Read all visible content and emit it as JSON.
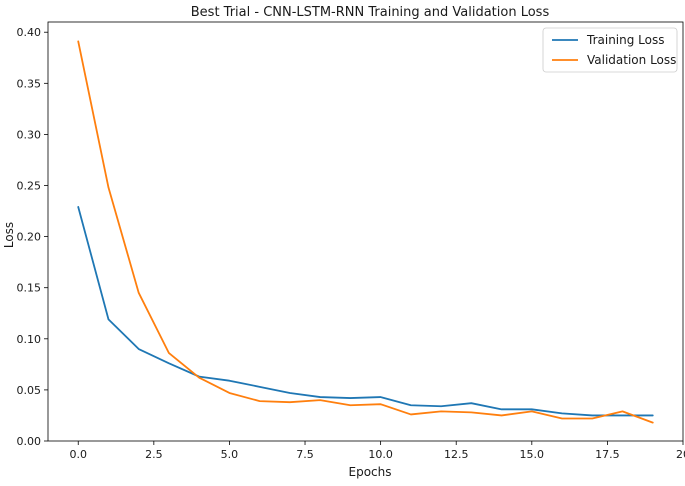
{
  "chart_data": {
    "type": "line",
    "title": "Best Trial - CNN-LSTM-RNN Training and Validation Loss",
    "xlabel": "Epochs",
    "ylabel": "Loss",
    "xlim": [
      -1,
      20
    ],
    "ylim": [
      0,
      0.41
    ],
    "xticks": [
      0,
      2.5,
      5,
      7.5,
      10,
      12.5,
      15,
      17.5,
      20
    ],
    "xtick_labels": [
      "0.0",
      "2.5",
      "5.0",
      "7.5",
      "10.0",
      "12.5",
      "15.0",
      "17.5",
      "20"
    ],
    "yticks": [
      0,
      0.05,
      0.1,
      0.15,
      0.2,
      0.25,
      0.3,
      0.35,
      0.4
    ],
    "ytick_labels": [
      "0.00",
      "0.05",
      "0.10",
      "0.15",
      "0.20",
      "0.25",
      "0.30",
      "0.35",
      "0.40"
    ],
    "grid": false,
    "legend_position": "top-right",
    "x": [
      0,
      1,
      2,
      3,
      4,
      5,
      6,
      7,
      8,
      9,
      10,
      11,
      12,
      13,
      14,
      15,
      16,
      17,
      18,
      19
    ],
    "series": [
      {
        "name": "Training Loss",
        "color": "#1f77b4",
        "values": [
          0.229,
          0.119,
          0.09,
          0.076,
          0.063,
          0.059,
          0.053,
          0.047,
          0.043,
          0.042,
          0.043,
          0.035,
          0.034,
          0.037,
          0.031,
          0.031,
          0.027,
          0.025,
          0.025,
          0.025
        ]
      },
      {
        "name": "Validation Loss",
        "color": "#ff7f0e",
        "values": [
          0.391,
          0.248,
          0.145,
          0.086,
          0.062,
          0.047,
          0.039,
          0.038,
          0.04,
          0.035,
          0.036,
          0.026,
          0.029,
          0.028,
          0.025,
          0.029,
          0.022,
          0.022,
          0.029,
          0.018
        ]
      }
    ]
  }
}
